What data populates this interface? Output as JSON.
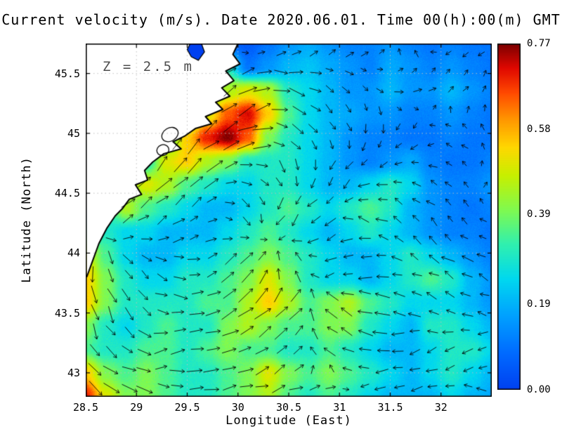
{
  "chart_data": {
    "type": "heatmap",
    "subtype": "vector-field-map",
    "title": "Current velocity (m/s). Date 2020.06.01. Time 00(h):00(m) GMT",
    "annotation": "Z = 2.5 m",
    "xlabel": "Longitude (East)",
    "ylabel": "Latitude (North)",
    "units": "m/s",
    "x_range": [
      28.5,
      32.5
    ],
    "y_range": [
      42.8,
      45.75
    ],
    "grid": true,
    "x_ticks": {
      "values": [
        28.5,
        29,
        29.5,
        30,
        30.5,
        31,
        31.5,
        32
      ],
      "labels": [
        "28.5",
        "29",
        "29.5",
        "30",
        "30.5",
        "31",
        "31.5",
        "32"
      ]
    },
    "y_ticks": {
      "values": [
        43,
        43.5,
        44,
        44.5,
        45,
        45.5
      ],
      "labels": [
        "43",
        "43.5",
        "44",
        "44.5",
        "45",
        "45.5"
      ]
    },
    "colorbar": {
      "min": 0.0,
      "max": 0.77,
      "tick_values": [
        0.77,
        0.58,
        0.39,
        0.19,
        0.0
      ],
      "tick_labels": [
        "0.77",
        "0.58",
        "0.39",
        "0.19",
        "0.00"
      ]
    },
    "colormap": [
      [
        0.0,
        "#0040f0"
      ],
      [
        0.1,
        "#0068ff"
      ],
      [
        0.22,
        "#00a4ff"
      ],
      [
        0.32,
        "#00d8f0"
      ],
      [
        0.42,
        "#30f0b0"
      ],
      [
        0.52,
        "#80fa50"
      ],
      [
        0.62,
        "#c8f000"
      ],
      [
        0.7,
        "#ffd800"
      ],
      [
        0.78,
        "#ff9800"
      ],
      [
        0.86,
        "#ff4800"
      ],
      [
        0.93,
        "#e00800"
      ],
      [
        1.0,
        "#7c0000"
      ]
    ],
    "speed_grid": {
      "lon_range": [
        28.5,
        32.5
      ],
      "lat_range": [
        45.75,
        42.8
      ],
      "ncols": 21,
      "nrows": 16,
      "values": [
        [
          0.05,
          0.05,
          0.05,
          0.05,
          0.05,
          0.08,
          0.12,
          0.08,
          0.05,
          0.1,
          0.15,
          0.18,
          0.15,
          0.12,
          0.12,
          0.15,
          0.12,
          0.1,
          0.12,
          0.1,
          0.1
        ],
        [
          0.05,
          0.05,
          0.05,
          0.05,
          0.05,
          0.1,
          0.25,
          0.3,
          0.1,
          0.15,
          0.2,
          0.22,
          0.18,
          0.15,
          0.12,
          0.18,
          0.15,
          0.12,
          0.15,
          0.12,
          0.1
        ],
        [
          0.05,
          0.05,
          0.05,
          0.05,
          0.08,
          0.15,
          0.3,
          0.45,
          0.5,
          0.45,
          0.3,
          0.25,
          0.2,
          0.15,
          0.15,
          0.2,
          0.15,
          0.15,
          0.2,
          0.15,
          0.12
        ],
        [
          0.05,
          0.05,
          0.05,
          0.08,
          0.15,
          0.3,
          0.5,
          0.65,
          0.72,
          0.55,
          0.35,
          0.25,
          0.2,
          0.18,
          0.15,
          0.15,
          0.12,
          0.12,
          0.15,
          0.12,
          0.1
        ],
        [
          0.05,
          0.05,
          0.05,
          0.1,
          0.35,
          0.55,
          0.7,
          0.77,
          0.65,
          0.4,
          0.3,
          0.25,
          0.2,
          0.15,
          0.12,
          0.12,
          0.1,
          0.1,
          0.12,
          0.1,
          0.1
        ],
        [
          0.05,
          0.05,
          0.1,
          0.3,
          0.5,
          0.55,
          0.45,
          0.4,
          0.3,
          0.3,
          0.3,
          0.25,
          0.2,
          0.15,
          0.12,
          0.15,
          0.18,
          0.12,
          0.1,
          0.1,
          0.12
        ],
        [
          0.05,
          0.1,
          0.4,
          0.5,
          0.45,
          0.35,
          0.3,
          0.25,
          0.25,
          0.3,
          0.3,
          0.25,
          0.2,
          0.2,
          0.25,
          0.3,
          0.25,
          0.15,
          0.12,
          0.12,
          0.15
        ],
        [
          0.1,
          0.3,
          0.45,
          0.35,
          0.3,
          0.25,
          0.2,
          0.2,
          0.25,
          0.3,
          0.35,
          0.3,
          0.25,
          0.3,
          0.35,
          0.3,
          0.2,
          0.15,
          0.12,
          0.1,
          0.12
        ],
        [
          0.35,
          0.3,
          0.25,
          0.25,
          0.2,
          0.2,
          0.2,
          0.25,
          0.3,
          0.35,
          0.3,
          0.25,
          0.2,
          0.25,
          0.3,
          0.25,
          0.2,
          0.15,
          0.12,
          0.12,
          0.1
        ],
        [
          0.5,
          0.35,
          0.25,
          0.2,
          0.2,
          0.25,
          0.25,
          0.3,
          0.35,
          0.4,
          0.35,
          0.3,
          0.25,
          0.2,
          0.2,
          0.25,
          0.3,
          0.25,
          0.2,
          0.15,
          0.12
        ],
        [
          0.55,
          0.4,
          0.3,
          0.25,
          0.25,
          0.3,
          0.3,
          0.35,
          0.4,
          0.5,
          0.4,
          0.3,
          0.25,
          0.25,
          0.2,
          0.25,
          0.3,
          0.35,
          0.3,
          0.2,
          0.15
        ],
        [
          0.55,
          0.4,
          0.3,
          0.3,
          0.3,
          0.3,
          0.35,
          0.35,
          0.45,
          0.55,
          0.45,
          0.35,
          0.4,
          0.45,
          0.35,
          0.3,
          0.25,
          0.25,
          0.25,
          0.2,
          0.15
        ],
        [
          0.4,
          0.3,
          0.25,
          0.3,
          0.35,
          0.3,
          0.3,
          0.4,
          0.45,
          0.4,
          0.35,
          0.35,
          0.4,
          0.4,
          0.3,
          0.25,
          0.2,
          0.3,
          0.3,
          0.25,
          0.2
        ],
        [
          0.35,
          0.3,
          0.3,
          0.35,
          0.35,
          0.3,
          0.35,
          0.4,
          0.35,
          0.35,
          0.3,
          0.3,
          0.35,
          0.3,
          0.25,
          0.2,
          0.2,
          0.25,
          0.3,
          0.3,
          0.25
        ],
        [
          0.55,
          0.4,
          0.35,
          0.4,
          0.35,
          0.3,
          0.3,
          0.35,
          0.4,
          0.5,
          0.4,
          0.35,
          0.4,
          0.35,
          0.3,
          0.25,
          0.2,
          0.25,
          0.3,
          0.25,
          0.2
        ],
        [
          0.7,
          0.5,
          0.4,
          0.4,
          0.35,
          0.3,
          0.3,
          0.35,
          0.4,
          0.45,
          0.35,
          0.3,
          0.35,
          0.3,
          0.25,
          0.2,
          0.2,
          0.2,
          0.25,
          0.2,
          0.18
        ]
      ]
    },
    "vector_grid": {
      "lon_range": [
        28.5,
        32.5
      ],
      "lat_range": [
        45.75,
        42.8
      ],
      "ncols": 11,
      "nrows": 9,
      "u": [
        [
          0,
          0,
          0,
          0.1,
          0.05,
          0.15,
          0.1,
          0.1,
          -0.1,
          -0.1,
          -0.1
        ],
        [
          0,
          0,
          0,
          0.2,
          0.45,
          0.4,
          0.2,
          0.1,
          0.15,
          0.1,
          0.05
        ],
        [
          0,
          0,
          0.2,
          0.5,
          0.6,
          0.3,
          0.1,
          0.0,
          -0.1,
          -0.1,
          -0.05
        ],
        [
          0,
          0.25,
          0.4,
          0.35,
          0.2,
          0.1,
          -0.1,
          -0.2,
          -0.15,
          -0.1,
          0.05
        ],
        [
          0.1,
          0.3,
          0.25,
          0.15,
          0.1,
          -0.2,
          -0.25,
          -0.3,
          -0.15,
          -0.1,
          -0.1
        ],
        [
          0.05,
          0.15,
          0.2,
          0.25,
          0.35,
          -0.1,
          -0.2,
          -0.25,
          -0.2,
          -0.25,
          -0.2
        ],
        [
          0.1,
          0.2,
          0.3,
          0.35,
          0.45,
          0.3,
          -0.3,
          -0.4,
          -0.25,
          -0.2,
          -0.15
        ],
        [
          0.25,
          0.3,
          0.3,
          0.35,
          0.3,
          0.25,
          -0.25,
          -0.3,
          -0.2,
          -0.25,
          -0.2
        ],
        [
          0.5,
          0.4,
          0.35,
          0.3,
          0.35,
          0.3,
          0.25,
          -0.2,
          -0.25,
          -0.2,
          -0.15
        ]
      ],
      "v": [
        [
          0,
          0,
          0,
          -0.1,
          -0.05,
          0.1,
          0.15,
          0.1,
          0.1,
          -0.05,
          -0.1
        ],
        [
          0,
          0,
          0,
          0.2,
          0.2,
          -0.1,
          -0.15,
          -0.1,
          0.05,
          0.1,
          0.1
        ],
        [
          0,
          0,
          0.3,
          0.45,
          0.3,
          -0.15,
          -0.2,
          -0.15,
          -0.1,
          0.05,
          0.1
        ],
        [
          0,
          0.3,
          0.4,
          0.3,
          -0.1,
          -0.25,
          -0.2,
          -0.1,
          0.05,
          0.05,
          0.05
        ],
        [
          -0.3,
          0.2,
          0.15,
          0.1,
          -0.2,
          -0.25,
          -0.1,
          0.1,
          0.15,
          0.1,
          0.05
        ],
        [
          -0.5,
          -0.25,
          -0.1,
          0.1,
          0.25,
          0.3,
          -0.1,
          -0.05,
          0.1,
          0.15,
          0.1
        ],
        [
          -0.55,
          -0.3,
          -0.1,
          0.15,
          0.3,
          0.35,
          0.2,
          0.1,
          0.05,
          0.1,
          0.05
        ],
        [
          -0.3,
          -0.15,
          0.05,
          0.1,
          0.15,
          0.2,
          0.15,
          0.05,
          -0.05,
          -0.1,
          -0.05
        ],
        [
          -0.4,
          -0.2,
          -0.05,
          0.05,
          0.1,
          0.1,
          0.05,
          -0.1,
          -0.05,
          0.05,
          0.05
        ]
      ]
    },
    "land": {
      "coast_polygon": [
        [
          28.5,
          45.75
        ],
        [
          30.0,
          45.75
        ],
        [
          29.95,
          45.66
        ],
        [
          30.02,
          45.58
        ],
        [
          29.88,
          45.52
        ],
        [
          29.96,
          45.44
        ],
        [
          29.84,
          45.38
        ],
        [
          29.92,
          45.31
        ],
        [
          29.78,
          45.26
        ],
        [
          29.85,
          45.2
        ],
        [
          29.68,
          45.14
        ],
        [
          29.74,
          45.08
        ],
        [
          29.58,
          45.04
        ],
        [
          29.48,
          44.98
        ],
        [
          29.36,
          44.93
        ],
        [
          29.44,
          44.87
        ],
        [
          29.27,
          44.83
        ],
        [
          29.16,
          44.76
        ],
        [
          29.08,
          44.69
        ],
        [
          29.11,
          44.61
        ],
        [
          28.99,
          44.57
        ],
        [
          29.05,
          44.49
        ],
        [
          28.93,
          44.45
        ],
        [
          28.86,
          44.37
        ],
        [
          28.79,
          44.31
        ],
        [
          28.71,
          44.21
        ],
        [
          28.63,
          44.08
        ],
        [
          28.57,
          43.94
        ],
        [
          28.51,
          43.8
        ]
      ],
      "lagoon_blue": [
        [
          29.53,
          45.75
        ],
        [
          29.64,
          45.75
        ],
        [
          29.67,
          45.68
        ],
        [
          29.61,
          45.61
        ],
        [
          29.54,
          45.64
        ],
        [
          29.5,
          45.7
        ]
      ],
      "lakes": [
        {
          "cx": 29.33,
          "cy": 44.99,
          "rx": 0.085,
          "ry": 0.055,
          "rot": -30
        },
        {
          "cx": 29.26,
          "cy": 44.86,
          "rx": 0.06,
          "ry": 0.045,
          "rot": -20
        }
      ]
    }
  }
}
